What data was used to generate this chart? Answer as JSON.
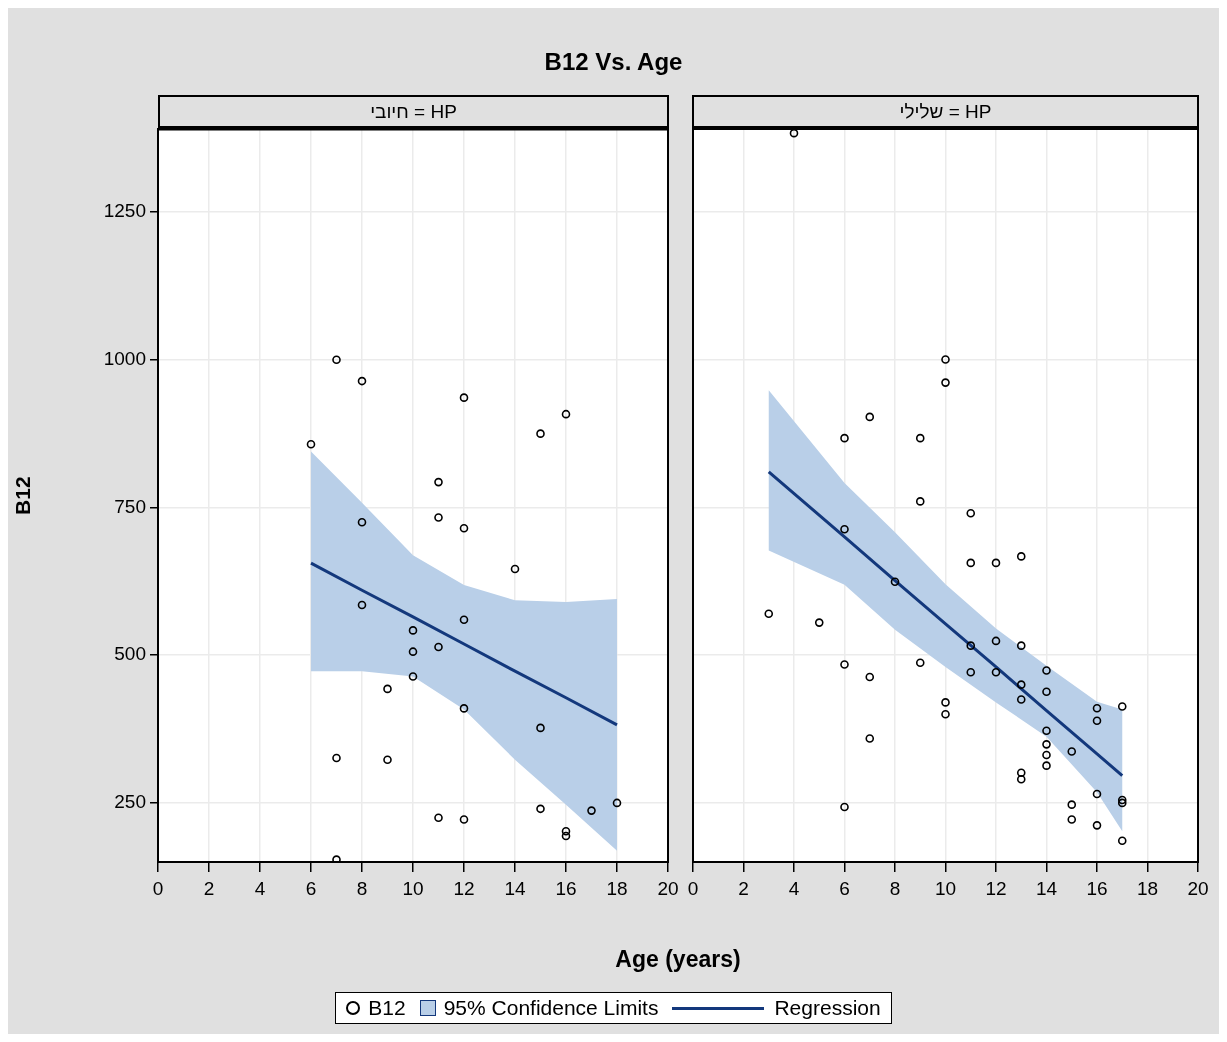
{
  "chart_data": [
    {
      "type": "scatter",
      "title": "B12 Vs. Age",
      "subtitle": "HP = חיובי",
      "xlabel": "Age (years)",
      "ylabel": "B12",
      "xlim": [
        0,
        20
      ],
      "xticks": [
        0,
        2,
        4,
        6,
        8,
        10,
        12,
        14,
        16,
        18,
        20
      ],
      "ylim": [
        150,
        1390
      ],
      "yticks": [
        250,
        500,
        750,
        1000,
        1250
      ],
      "grid": true,
      "legend": "bottom",
      "series": [
        {
          "type": "scatter",
          "name": "B12",
          "color": "#000000",
          "marker": "circle",
          "x": [
            6,
            7,
            8,
            12,
            16,
            15,
            11,
            8,
            11,
            12,
            14,
            8,
            12,
            10,
            11,
            10,
            10,
            9,
            12,
            15,
            7,
            9,
            11,
            12,
            15,
            16,
            16,
            17,
            18,
            7
          ],
          "values": [
            857,
            1000,
            964,
            936,
            908,
            875,
            793,
            725,
            733,
            715,
            646,
            585,
            560,
            542,
            514,
            506,
            464,
            443,
            410,
            377,
            326,
            323,
            225,
            222,
            240,
            202,
            194,
            237,
            250,
            154
          ]
        },
        {
          "type": "line",
          "name": "Regression",
          "color": "#13387c",
          "x": [
            6,
            8,
            10,
            12,
            14,
            16,
            18
          ],
          "values": [
            656,
            610,
            565,
            519,
            473,
            428,
            382
          ],
          "lower": [
            473,
            473,
            464,
            408,
            323,
            247,
            169
          ],
          "upper": [
            845,
            758,
            669,
            619,
            593,
            590,
            595
          ]
        }
      ],
      "annotations": [
        "95% Confidence Limits"
      ]
    },
    {
      "type": "scatter",
      "subtitle": "HP = שלילי",
      "xlim": [
        0,
        20
      ],
      "xticks": [
        0,
        2,
        4,
        6,
        8,
        10,
        12,
        14,
        16,
        18,
        20
      ],
      "ylim": [
        150,
        1390
      ],
      "yticks": [
        250,
        500,
        750,
        1000,
        1250
      ],
      "grid": true,
      "tick_labels": "x",
      "series": [
        {
          "type": "scatter",
          "color": "#000000",
          "marker": "circle",
          "x": [
            4,
            10,
            10,
            7,
            6,
            9,
            9,
            11,
            6,
            13,
            11,
            12,
            8,
            3,
            5,
            12,
            11,
            13,
            6,
            9,
            11,
            12,
            14,
            7,
            13,
            14,
            13,
            10,
            10,
            16,
            17,
            16,
            14,
            7,
            14,
            15,
            14,
            14,
            13,
            13,
            16,
            17,
            17,
            15,
            6,
            15,
            16,
            17
          ],
          "values": [
            1383,
            1000,
            961,
            903,
            867,
            867,
            760,
            740,
            713,
            667,
            656,
            656,
            624,
            570,
            555,
            524,
            516,
            516,
            484,
            487,
            471,
            471,
            474,
            463,
            450,
            438,
            425,
            420,
            400,
            410,
            413,
            389,
            372,
            359,
            349,
            337,
            331,
            313,
            301,
            290,
            265,
            255,
            250,
            247,
            243,
            222,
            212,
            186
          ]
        },
        {
          "type": "line",
          "color": "#13387c",
          "x": [
            3,
            6,
            8,
            10,
            12,
            14,
            16,
            17
          ],
          "values": [
            810,
            700,
            626,
            553,
            480,
            406,
            333,
            296
          ],
          "lower": [
            677,
            619,
            543,
            480,
            420,
            362,
            268,
            202
          ],
          "upper": [
            948,
            791,
            708,
            620,
            545,
            482,
            421,
            408
          ]
        }
      ]
    }
  ]
}
